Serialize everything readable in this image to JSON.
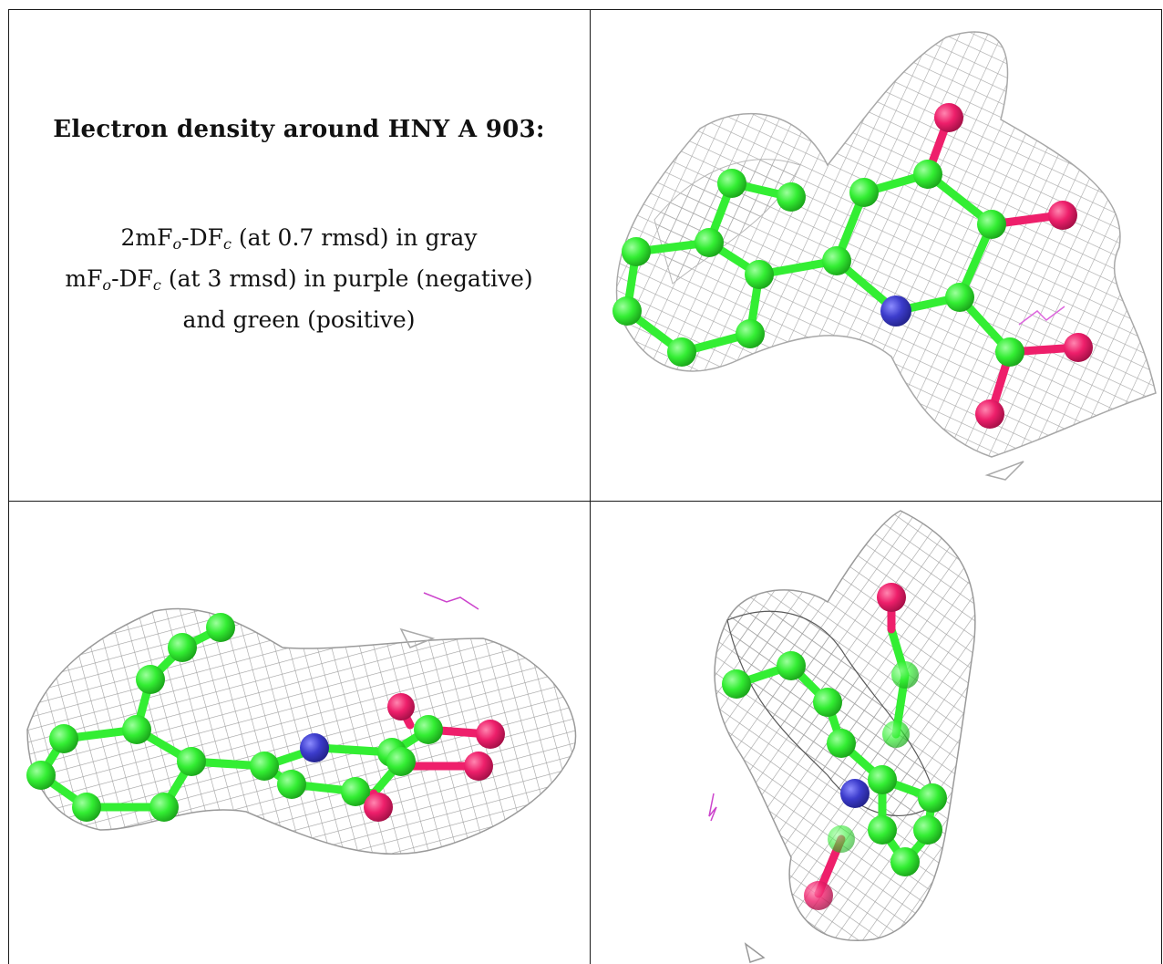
{
  "caption": {
    "title": "Electron density around HNY A 903:",
    "line1": {
      "pre": "2mF",
      "sub1": "o",
      "mid": "-DF",
      "sub2": "c",
      "post": " (at 0.7 rmsd) in gray"
    },
    "line2": {
      "pre": "mF",
      "sub1": "o",
      "mid": "-DF",
      "sub2": "c",
      "post": " (at 3 rmsd) in purple (negative)"
    },
    "line3": "and green (positive)"
  },
  "colors": {
    "carbon": "#33ee33",
    "oxygen": "#ee1f6b",
    "nitrogen": "#3c3ccc",
    "mesh": "#a8a8a8",
    "negative_density": "#cc44cc",
    "border": "#1a1a1a"
  },
  "panels": [
    {
      "id": "view-1",
      "description_icon": "molecule-density-view"
    },
    {
      "id": "view-2",
      "description_icon": "molecule-density-view"
    },
    {
      "id": "view-3",
      "description_icon": "molecule-density-view"
    }
  ]
}
